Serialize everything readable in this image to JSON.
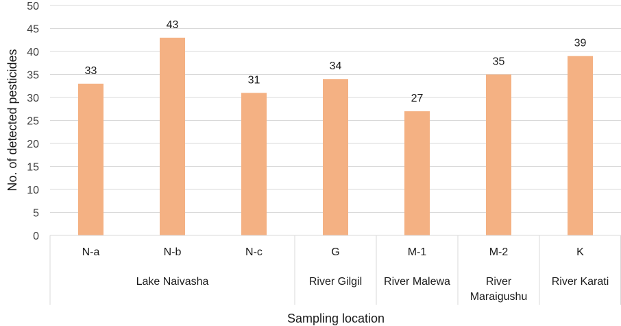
{
  "chart_data": {
    "type": "bar",
    "categories": [
      "N-a",
      "N-b",
      "N-c",
      "G",
      "M-1",
      "M-2",
      "K"
    ],
    "values": [
      33,
      43,
      31,
      34,
      27,
      35,
      39
    ],
    "groups": [
      {
        "lines": [
          "Lake Naivasha"
        ],
        "span": [
          0,
          2
        ]
      },
      {
        "lines": [
          "River Gilgil"
        ],
        "span": [
          3,
          3
        ]
      },
      {
        "lines": [
          "River Malewa"
        ],
        "span": [
          4,
          4
        ]
      },
      {
        "lines": [
          "River",
          "Maraigushu"
        ],
        "span": [
          5,
          5
        ]
      },
      {
        "lines": [
          "River Karati"
        ],
        "span": [
          6,
          6
        ]
      }
    ],
    "title": "",
    "xlabel": "Sampling location",
    "ylabel": "No. of detected pesticides",
    "ylim": [
      0,
      50
    ],
    "yticks": [
      0,
      5,
      10,
      15,
      20,
      25,
      30,
      35,
      40,
      45,
      50
    ],
    "grid": true,
    "legend": "none",
    "bar_color": "#F4B183",
    "grid_color": "#D9D9D9"
  }
}
